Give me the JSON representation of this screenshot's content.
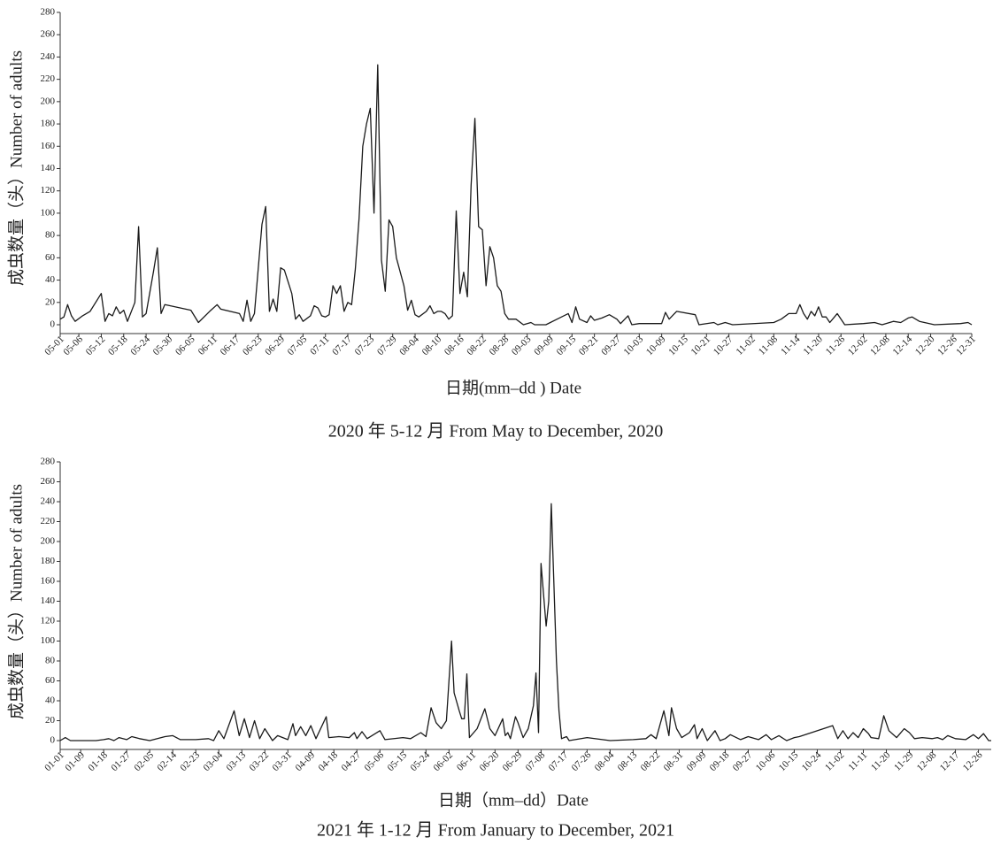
{
  "chart_data": [
    {
      "type": "line",
      "title": "2020 年 5-12 月 From May to December, 2020",
      "x_label": "日期(mm–dd ) Date",
      "y_label": "成虫数量（头）Number of adults",
      "color": "#1a1a1a",
      "ylim": [
        0,
        280
      ],
      "yticks": [
        0,
        20,
        40,
        60,
        80,
        100,
        120,
        140,
        160,
        180,
        200,
        220,
        240,
        260,
        280
      ],
      "xlim": [
        "05-01",
        "12-31"
      ],
      "xticks": [
        "05-01",
        "05-06",
        "05-12",
        "05-18",
        "05-24",
        "05-30",
        "06-05",
        "06-11",
        "06-17",
        "06-23",
        "06-29",
        "07-05",
        "07-11",
        "07-17",
        "07-23",
        "07-29",
        "08-04",
        "08-10",
        "08-16",
        "08-22",
        "08-28",
        "09-03",
        "09-09",
        "09-15",
        "09-21",
        "09-27",
        "10-03",
        "10-09",
        "10-15",
        "10-21",
        "10-27",
        "11-02",
        "11-08",
        "11-14",
        "11-20",
        "11-26",
        "12-02",
        "12-08",
        "12-14",
        "12-20",
        "12-26",
        "12-31"
      ],
      "x": [
        "05-01",
        "05-02",
        "05-03",
        "05-04",
        "05-05",
        "05-07",
        "05-09",
        "05-12",
        "05-13",
        "05-14",
        "05-15",
        "05-16",
        "05-17",
        "05-18",
        "05-19",
        "05-21",
        "05-22",
        "05-23",
        "05-24",
        "05-26",
        "05-27",
        "05-28",
        "05-29",
        "06-05",
        "06-07",
        "06-10",
        "06-12",
        "06-13",
        "06-18",
        "06-19",
        "06-20",
        "06-21",
        "06-22",
        "06-24",
        "06-25",
        "06-26",
        "06-27",
        "06-28",
        "06-29",
        "06-30",
        "07-02",
        "07-03",
        "07-04",
        "07-05",
        "07-07",
        "07-08",
        "07-09",
        "07-10",
        "07-11",
        "07-12",
        "07-13",
        "07-14",
        "07-15",
        "07-16",
        "07-17",
        "07-18",
        "07-19",
        "07-20",
        "07-21",
        "07-22",
        "07-23",
        "07-24",
        "07-25",
        "07-26",
        "07-27",
        "07-28",
        "07-29",
        "07-30",
        "08-01",
        "08-02",
        "08-03",
        "08-04",
        "08-05",
        "08-07",
        "08-08",
        "08-09",
        "08-10",
        "08-11",
        "08-12",
        "08-13",
        "08-14",
        "08-15",
        "08-16",
        "08-17",
        "08-18",
        "08-19",
        "08-20",
        "08-21",
        "08-22",
        "08-23",
        "08-24",
        "08-25",
        "08-26",
        "08-27",
        "08-28",
        "08-29",
        "08-31",
        "09-02",
        "09-04",
        "09-05",
        "09-08",
        "09-14",
        "09-15",
        "09-16",
        "09-17",
        "09-19",
        "09-20",
        "09-21",
        "09-23",
        "09-25",
        "09-27",
        "09-28",
        "09-30",
        "10-01",
        "10-03",
        "10-09",
        "10-10",
        "10-11",
        "10-13",
        "10-18",
        "10-19",
        "10-23",
        "10-24",
        "10-26",
        "10-28",
        "11-08",
        "11-10",
        "11-12",
        "11-14",
        "11-15",
        "11-16",
        "11-17",
        "11-18",
        "11-19",
        "11-20",
        "11-21",
        "11-22",
        "11-23",
        "11-25",
        "11-27",
        "12-02",
        "12-05",
        "12-07",
        "12-10",
        "12-12",
        "12-14",
        "12-15",
        "12-17",
        "12-21",
        "12-28",
        "12-30",
        "12-31"
      ],
      "values": [
        5,
        7,
        18,
        8,
        3,
        8,
        12,
        28,
        3,
        10,
        8,
        16,
        10,
        13,
        3,
        20,
        88,
        7,
        10,
        48,
        69,
        10,
        18,
        13,
        2,
        12,
        18,
        14,
        10,
        3,
        22,
        3,
        10,
        90,
        106,
        12,
        23,
        12,
        51,
        49,
        28,
        5,
        9,
        3,
        8,
        17,
        15,
        8,
        7,
        9,
        35,
        28,
        35,
        12,
        20,
        18,
        50,
        95,
        160,
        180,
        194,
        100,
        233,
        58,
        30,
        94,
        88,
        60,
        35,
        13,
        22,
        9,
        7,
        12,
        17,
        10,
        12,
        12,
        10,
        5,
        8,
        102,
        28,
        47,
        25,
        125,
        185,
        88,
        85,
        35,
        70,
        60,
        35,
        30,
        10,
        5,
        5,
        0,
        2,
        0,
        0,
        10,
        2,
        16,
        5,
        2,
        8,
        4,
        6,
        9,
        5,
        1,
        8,
        0,
        1,
        1,
        11,
        5,
        12,
        9,
        0,
        2,
        0,
        2,
        0,
        2,
        5,
        10,
        10,
        18,
        10,
        5,
        12,
        8,
        16,
        7,
        7,
        2,
        10,
        0,
        1,
        2,
        0,
        3,
        2,
        6,
        7,
        3,
        0,
        1,
        2,
        0
      ]
    },
    {
      "type": "line",
      "title": "2021 年 1-12 月 From January to December, 2021",
      "x_label": "日期（mm–dd）Date",
      "y_label": "成虫数量（头）Number of adults",
      "color": "#1a1a1a",
      "ylim": [
        0,
        280
      ],
      "yticks": [
        0,
        20,
        40,
        60,
        80,
        100,
        120,
        140,
        160,
        180,
        200,
        220,
        240,
        260,
        280
      ],
      "xlim": [
        "01-01",
        "12-31"
      ],
      "xticks": [
        "01-01",
        "01-09",
        "01-18",
        "01-27",
        "02-05",
        "02-14",
        "02-23",
        "03-04",
        "03-13",
        "03-22",
        "03-31",
        "04-09",
        "04-18",
        "04-27",
        "05-06",
        "05-15",
        "05-24",
        "06-02",
        "06-11",
        "06-20",
        "06-29",
        "07-08",
        "07-17",
        "07-26",
        "08-04",
        "08-13",
        "08-22",
        "08-31",
        "09-09",
        "09-18",
        "09-27",
        "10-06",
        "10-15",
        "10-24",
        "11-02",
        "11-11",
        "11-20",
        "11-29",
        "12-08",
        "12-17",
        "12-26"
      ],
      "x": [
        "01-01",
        "01-03",
        "01-05",
        "01-09",
        "01-15",
        "01-18",
        "01-20",
        "01-22",
        "01-24",
        "01-27",
        "01-29",
        "02-01",
        "02-05",
        "02-08",
        "02-11",
        "02-14",
        "02-17",
        "02-23",
        "02-28",
        "03-02",
        "03-04",
        "03-06",
        "03-10",
        "03-12",
        "03-14",
        "03-16",
        "03-18",
        "03-20",
        "03-22",
        "03-25",
        "03-27",
        "03-31",
        "04-02",
        "04-03",
        "04-05",
        "04-07",
        "04-09",
        "04-11",
        "04-15",
        "04-16",
        "04-20",
        "04-24",
        "04-26",
        "04-27",
        "04-29",
        "05-01",
        "05-06",
        "05-08",
        "05-15",
        "05-18",
        "05-22",
        "05-24",
        "05-26",
        "05-28",
        "05-30",
        "06-01",
        "06-03",
        "06-04",
        "06-06",
        "06-07",
        "06-08",
        "06-09",
        "06-10",
        "06-13",
        "06-16",
        "06-18",
        "06-20",
        "06-23",
        "06-24",
        "06-25",
        "06-26",
        "06-28",
        "06-29",
        "07-01",
        "07-03",
        "07-05",
        "07-06",
        "07-07",
        "07-08",
        "07-10",
        "07-11",
        "07-12",
        "07-14",
        "07-15",
        "07-16",
        "07-18",
        "07-19",
        "07-26",
        "08-04",
        "08-13",
        "08-18",
        "08-20",
        "08-22",
        "08-25",
        "08-27",
        "08-28",
        "08-30",
        "09-01",
        "09-04",
        "09-06",
        "09-07",
        "09-09",
        "09-11",
        "09-14",
        "09-16",
        "09-18",
        "09-20",
        "09-24",
        "09-27",
        "10-01",
        "10-04",
        "10-06",
        "10-09",
        "10-12",
        "10-15",
        "10-17",
        "10-30",
        "11-01",
        "11-03",
        "11-05",
        "11-07",
        "11-09",
        "11-11",
        "11-13",
        "11-14",
        "11-17",
        "11-19",
        "11-21",
        "11-24",
        "11-27",
        "11-29",
        "12-01",
        "12-04",
        "12-08",
        "12-10",
        "12-12",
        "12-14",
        "12-17",
        "12-21",
        "12-24",
        "12-26",
        "12-28",
        "12-30",
        "12-31"
      ],
      "values": [
        0,
        3,
        0,
        0,
        0,
        1,
        2,
        0,
        3,
        1,
        4,
        2,
        0,
        2,
        4,
        5,
        1,
        1,
        2,
        0,
        10,
        2,
        30,
        5,
        22,
        3,
        20,
        2,
        12,
        0,
        5,
        1,
        17,
        5,
        14,
        5,
        15,
        2,
        24,
        3,
        4,
        3,
        8,
        2,
        9,
        2,
        10,
        1,
        3,
        2,
        8,
        4,
        33,
        18,
        12,
        20,
        100,
        48,
        30,
        22,
        22,
        67,
        3,
        12,
        32,
        12,
        5,
        22,
        5,
        8,
        2,
        24,
        18,
        3,
        12,
        35,
        68,
        8,
        178,
        115,
        140,
        238,
        80,
        30,
        2,
        4,
        0,
        3,
        0,
        1,
        2,
        6,
        2,
        30,
        5,
        33,
        12,
        3,
        8,
        16,
        2,
        12,
        0,
        10,
        0,
        2,
        6,
        1,
        4,
        1,
        6,
        1,
        5,
        0,
        3,
        4,
        15,
        2,
        10,
        2,
        8,
        3,
        12,
        7,
        3,
        2,
        25,
        10,
        3,
        12,
        8,
        2,
        3,
        2,
        3,
        1,
        5,
        2,
        1,
        6,
        2,
        7,
        0,
        0
      ]
    }
  ]
}
